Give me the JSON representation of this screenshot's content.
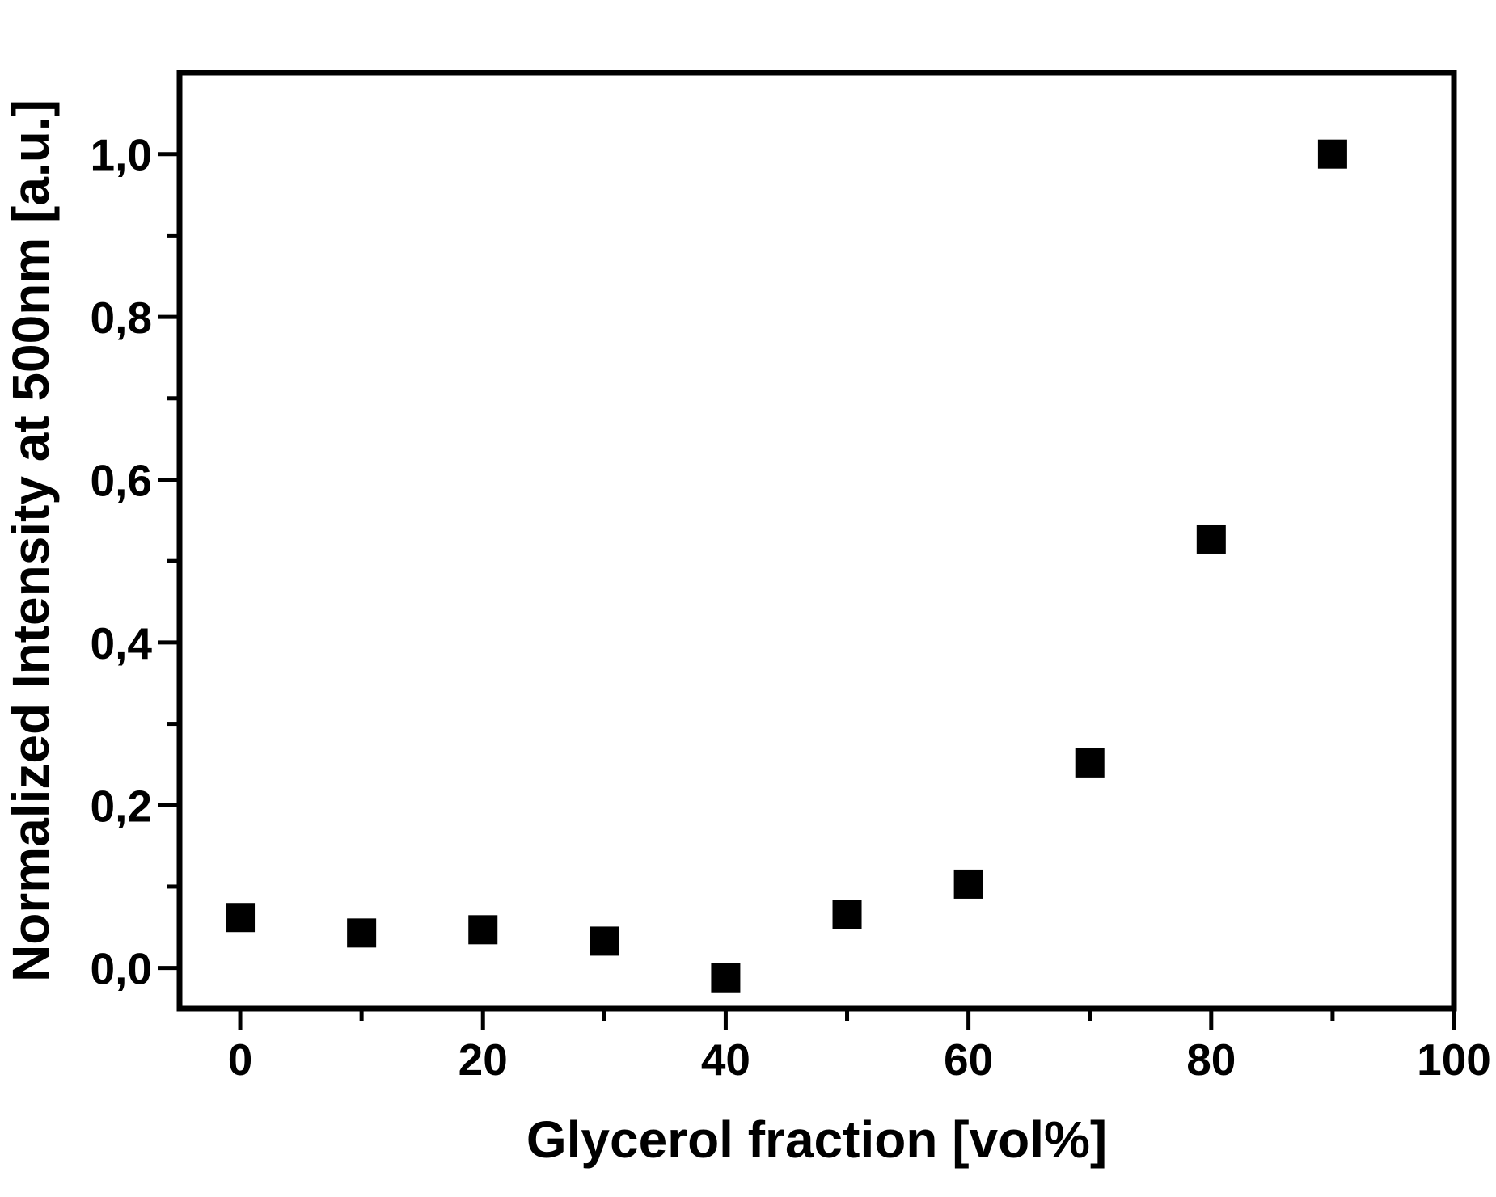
{
  "chart_data": {
    "type": "scatter",
    "title": "",
    "xlabel": "Glycerol fraction [vol%]",
    "ylabel": "Normalized Intensity at 500nm [a.u.]",
    "xlim": [
      -5,
      100
    ],
    "ylim": [
      -0.05,
      1.1
    ],
    "x_ticks": [
      0,
      20,
      40,
      60,
      80,
      100
    ],
    "x_tick_labels": [
      "0",
      "20",
      "40",
      "60",
      "80",
      "100"
    ],
    "y_ticks": [
      0.0,
      0.2,
      0.4,
      0.6,
      0.8,
      1.0
    ],
    "y_tick_labels": [
      "0,0",
      "0,2",
      "0,4",
      "0,6",
      "0,8",
      "1,0"
    ],
    "grid": false,
    "marker": "square",
    "series": [
      {
        "color": "#000000",
        "x": [
          0,
          10,
          20,
          30,
          40,
          50,
          60,
          70,
          80,
          90
        ],
        "y": [
          0.062,
          0.043,
          0.047,
          0.033,
          -0.012,
          0.066,
          0.103,
          0.252,
          0.527,
          1.0
        ]
      }
    ]
  }
}
